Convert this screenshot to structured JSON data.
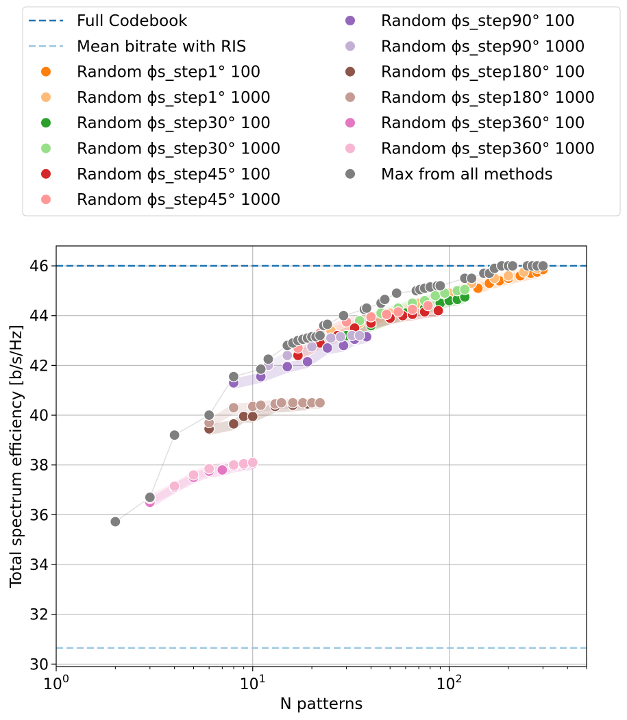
{
  "chart_data": {
    "type": "scatter",
    "title": "",
    "xlabel": "N patterns",
    "ylabel": "Total spectrum efficiency [b/s/Hz]",
    "xscale": "log",
    "xlim": [
      1,
      500
    ],
    "ylim": [
      29.9,
      46.8
    ],
    "grid": true,
    "legend_position": "above plot, two columns",
    "x_ticks": [
      {
        "value": 1,
        "base": "10",
        "exp": "0"
      },
      {
        "value": 10,
        "base": "10",
        "exp": "1"
      },
      {
        "value": 100,
        "base": "10",
        "exp": "2"
      }
    ],
    "y_ticks": [
      {
        "value": 30,
        "label": "30"
      },
      {
        "value": 32,
        "label": "32"
      },
      {
        "value": 34,
        "label": "34"
      },
      {
        "value": 36,
        "label": "36"
      },
      {
        "value": 38,
        "label": "38"
      },
      {
        "value": 40,
        "label": "40"
      },
      {
        "value": 42,
        "label": "42"
      },
      {
        "value": 44,
        "label": "44"
      },
      {
        "value": 46,
        "label": "46"
      }
    ],
    "hlines": [
      {
        "name": "Full Codebook",
        "y": 46.0,
        "color": "#1f77b4"
      },
      {
        "name": "Mean bitrate with RIS",
        "y": 30.65,
        "color": "#9ecae1"
      }
    ],
    "series": [
      {
        "name": "Random ϕs_step1° 100",
        "color": "#ff7f0e",
        "x": [
          140,
          160,
          180,
          200,
          230,
          260,
          280,
          300
        ],
        "y": [
          45.1,
          45.3,
          45.4,
          45.5,
          45.6,
          45.7,
          45.75,
          45.85
        ]
      },
      {
        "name": "Random ϕs_step1° 1000",
        "color": "#ffbb78",
        "x": [
          25,
          35,
          50,
          70,
          100,
          130,
          170,
          200,
          240,
          280
        ],
        "y": [
          43.4,
          43.7,
          44.1,
          44.5,
          44.9,
          45.3,
          45.5,
          45.6,
          45.75,
          45.9
        ]
      },
      {
        "name": "Random ϕs_step30° 100",
        "color": "#2ca02c",
        "x": [
          30,
          40,
          50,
          60,
          75,
          90,
          100,
          110,
          120
        ],
        "y": [
          43.2,
          43.6,
          43.9,
          44.1,
          44.3,
          44.5,
          44.6,
          44.65,
          44.75
        ]
      },
      {
        "name": "Random ϕs_step30° 1000",
        "color": "#98df8a",
        "x": [
          35,
          45,
          55,
          65,
          75,
          85,
          95,
          110,
          120
        ],
        "y": [
          43.8,
          44.1,
          44.3,
          44.5,
          44.6,
          44.8,
          44.9,
          45.0,
          45.05
        ]
      },
      {
        "name": "Random ϕs_step45° 100",
        "color": "#d62728",
        "x": [
          17,
          22,
          27,
          33,
          40,
          50,
          58,
          65,
          75,
          88
        ],
        "y": [
          42.4,
          42.9,
          43.2,
          43.5,
          43.7,
          43.9,
          44.0,
          44.05,
          44.15,
          44.2
        ]
      },
      {
        "name": "Random ϕs_step45° 1000",
        "color": "#ff9896",
        "x": [
          17,
          22,
          30,
          40,
          48,
          55,
          65,
          78
        ],
        "y": [
          42.7,
          43.3,
          43.75,
          43.95,
          44.05,
          44.15,
          44.25,
          44.4
        ]
      },
      {
        "name": "Random ϕs_step90° 100",
        "color": "#9467bd",
        "x": [
          8,
          11,
          15,
          19,
          24,
          29,
          33,
          38
        ],
        "y": [
          41.3,
          41.55,
          41.95,
          42.15,
          42.7,
          42.8,
          43.05,
          43.15
        ]
      },
      {
        "name": "Random ϕs_step90° 1000",
        "color": "#c5b0d5",
        "x": [
          12,
          15,
          20,
          25,
          28,
          32,
          35
        ],
        "y": [
          42.0,
          42.4,
          42.75,
          43.1,
          43.15,
          43.2,
          43.2
        ]
      },
      {
        "name": "Random ϕs_step180° 100",
        "color": "#8c564b",
        "x": [
          6,
          8,
          9,
          10,
          13,
          16,
          19
        ],
        "y": [
          39.45,
          39.65,
          39.95,
          39.95,
          40.35,
          40.4,
          40.45
        ]
      },
      {
        "name": "Random ϕs_step180° 1000",
        "color": "#c49c94",
        "x": [
          6,
          8,
          10,
          11,
          13,
          14,
          16,
          18,
          20,
          22
        ],
        "y": [
          39.7,
          40.3,
          40.35,
          40.4,
          40.45,
          40.5,
          40.5,
          40.5,
          40.5,
          40.5
        ]
      },
      {
        "name": "Random ϕs_step360° 100",
        "color": "#e377c2",
        "x": [
          3,
          4,
          5,
          6,
          7,
          8,
          9,
          10
        ],
        "y": [
          36.5,
          37.1,
          37.5,
          37.75,
          37.8,
          37.95,
          38.0,
          38.05
        ]
      },
      {
        "name": "Random ϕs_step360° 1000",
        "color": "#f7b6d2",
        "x": [
          3,
          4,
          5,
          6,
          8,
          9,
          10
        ],
        "y": [
          36.65,
          37.15,
          37.6,
          37.85,
          38.0,
          38.05,
          38.1
        ]
      },
      {
        "name": "Max from all methods",
        "color": "#7f7f7f",
        "x": [
          2,
          3,
          4,
          6,
          8,
          11,
          12,
          15,
          16,
          17,
          18,
          19,
          20,
          21,
          22,
          23,
          24,
          29,
          37,
          38,
          45,
          47,
          54,
          68,
          71,
          75,
          80,
          87,
          90,
          120,
          130,
          150,
          160,
          170,
          185,
          200,
          210,
          250,
          265,
          280,
          300
        ],
        "y": [
          35.72,
          36.7,
          39.2,
          40.0,
          41.55,
          41.85,
          42.25,
          42.8,
          42.9,
          43.0,
          43.05,
          43.1,
          43.15,
          43.15,
          43.2,
          43.6,
          43.65,
          44.0,
          44.25,
          44.3,
          44.5,
          44.65,
          44.9,
          45.0,
          45.05,
          45.1,
          45.15,
          45.2,
          45.2,
          45.5,
          45.5,
          45.7,
          45.7,
          45.9,
          46.0,
          46.0,
          46.0,
          46.0,
          46.0,
          46.0,
          46.0
        ]
      }
    ],
    "legend_lines": [
      {
        "label": "Full Codebook",
        "kind": "line",
        "color": "#1f77b4"
      },
      {
        "label": "Mean bitrate with RIS",
        "kind": "line",
        "color": "#9ecae1"
      },
      {
        "label": "Random ϕs_step1° 100",
        "kind": "dot",
        "color": "#ff7f0e"
      },
      {
        "label": "Random ϕs_step1° 1000",
        "kind": "dot",
        "color": "#ffbb78"
      },
      {
        "label": "Random ϕs_step30° 100",
        "kind": "dot",
        "color": "#2ca02c"
      },
      {
        "label": "Random ϕs_step30° 1000",
        "kind": "dot",
        "color": "#98df8a"
      },
      {
        "label": "Random ϕs_step45° 100",
        "kind": "dot",
        "color": "#d62728"
      },
      {
        "label": "Random ϕs_step45° 1000",
        "kind": "dot",
        "color": "#ff9896"
      },
      {
        "label": "Random ϕs_step90° 100",
        "kind": "dot",
        "color": "#9467bd"
      },
      {
        "label": "Random ϕs_step90° 1000",
        "kind": "dot",
        "color": "#c5b0d5"
      },
      {
        "label": "Random ϕs_step180° 100",
        "kind": "dot",
        "color": "#8c564b"
      },
      {
        "label": "Random ϕs_step180° 1000",
        "kind": "dot",
        "color": "#c49c94"
      },
      {
        "label": "Random ϕs_step360° 100",
        "kind": "dot",
        "color": "#e377c2"
      },
      {
        "label": "Random ϕs_step360° 1000",
        "kind": "dot",
        "color": "#f7b6d2"
      },
      {
        "label": "Max from all methods",
        "kind": "dot",
        "color": "#7f7f7f"
      }
    ]
  }
}
